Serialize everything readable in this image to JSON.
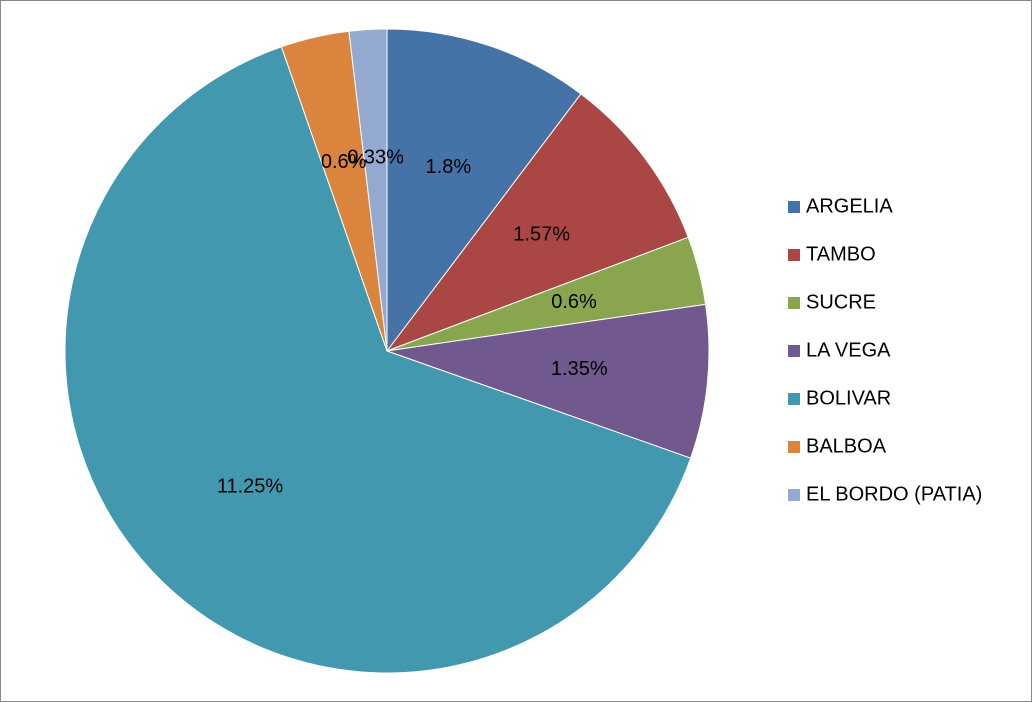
{
  "chart_data": {
    "type": "pie",
    "categories": [
      "ARGELIA",
      "TAMBO",
      "SUCRE",
      "LA VEGA",
      "BOLIVAR",
      "BALBOA",
      "EL BORDO (PATIA)"
    ],
    "values": [
      1.8,
      1.57,
      0.6,
      1.35,
      11.25,
      0.6,
      0.33
    ],
    "value_labels": [
      "1.8%",
      "1.57%",
      "0.6%",
      "1.35%",
      "11.25%",
      "0.6%",
      "0.33%"
    ],
    "colors": [
      "#4572a7",
      "#aa4643",
      "#89a54e",
      "#71588f",
      "#4198af",
      "#db843d",
      "#93a9cf"
    ],
    "legend": "right"
  }
}
